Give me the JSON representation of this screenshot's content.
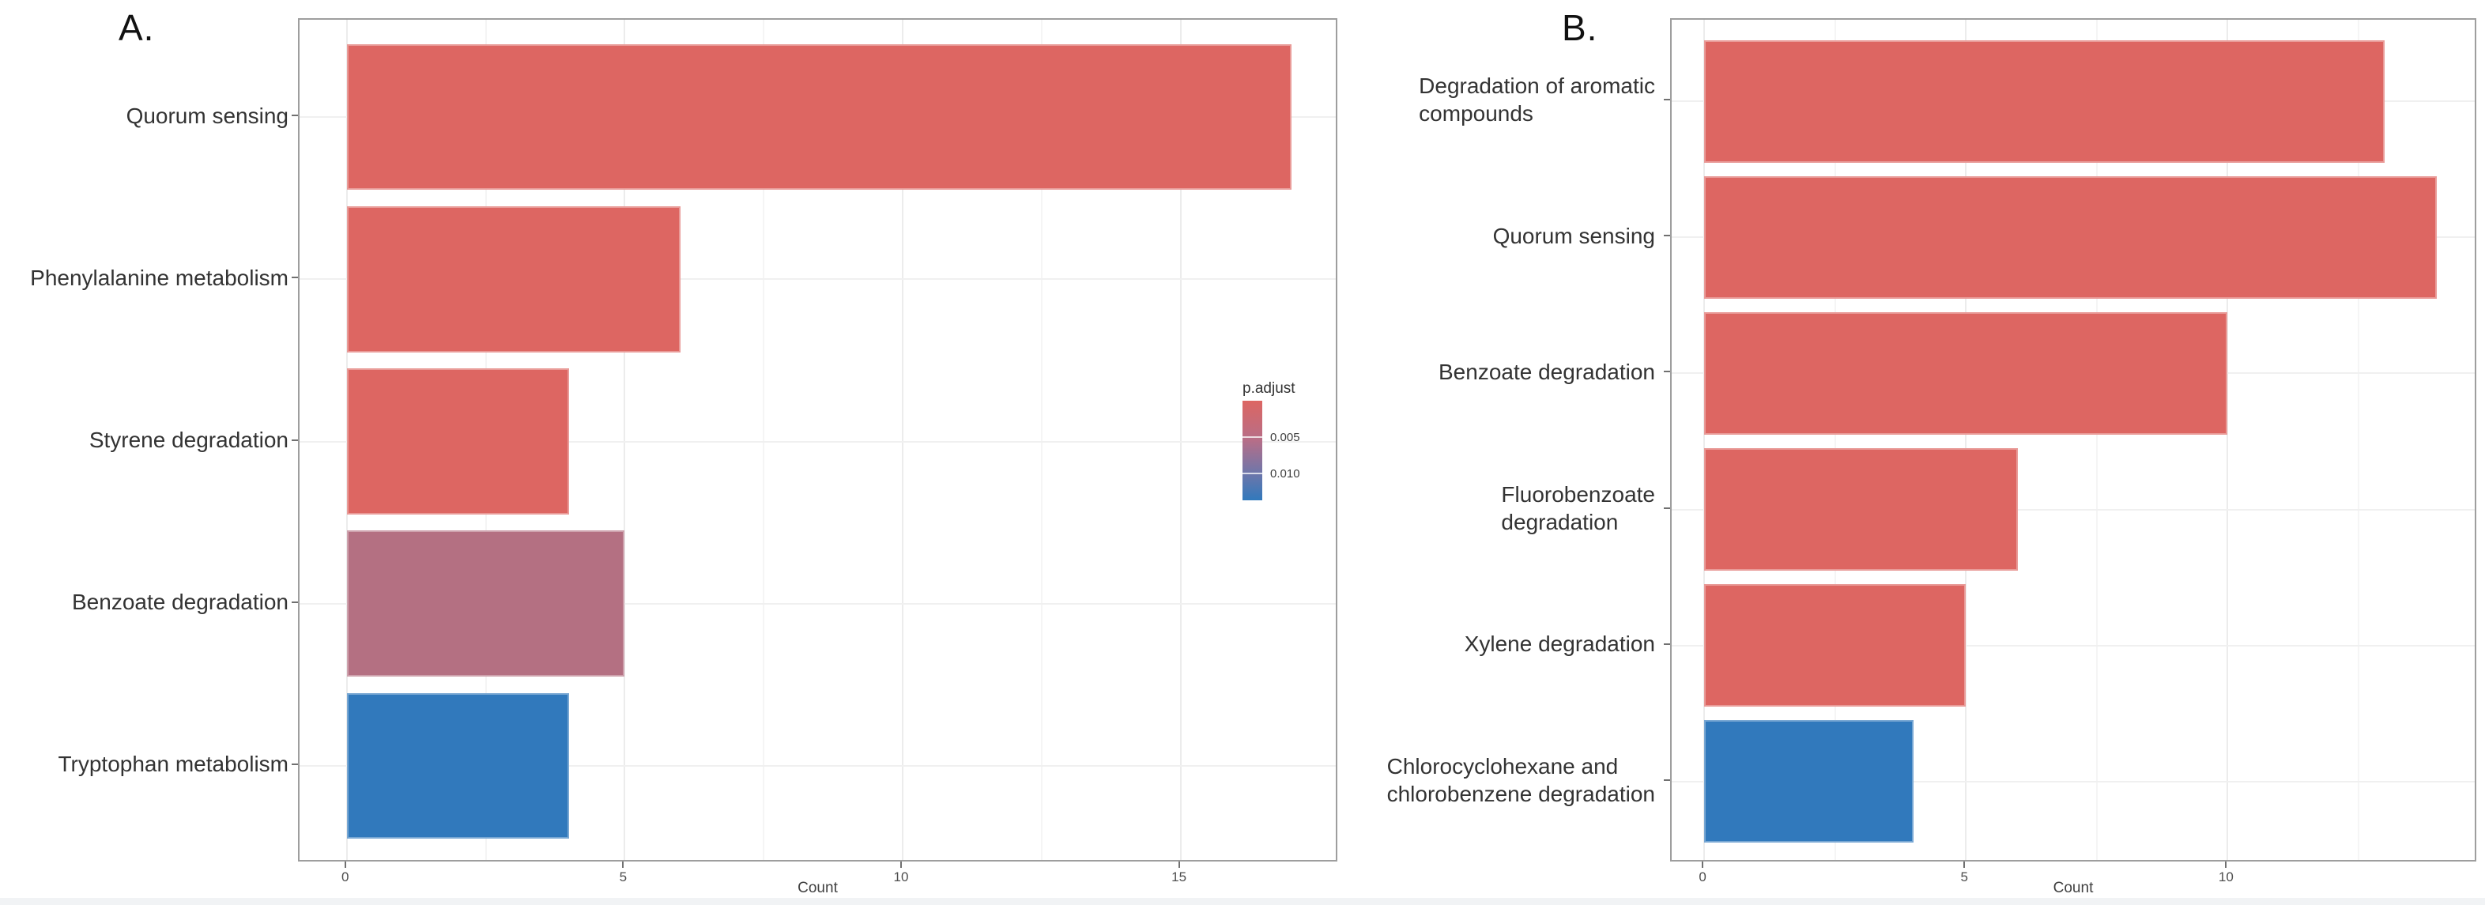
{
  "figure_type": "two-panel horizontal bar chart, pathway enrichment",
  "colors": {
    "bar_red": "#DD6662",
    "bar_mauve": "#B47082",
    "bar_blue": "#3179BC",
    "panel_border": "#9e9e9e",
    "grid_major": "#ececec",
    "grid_minor": "#f5f5f5",
    "bottom_strip": "#f1f3f5"
  },
  "chart_data": [
    {
      "type": "bar",
      "orientation": "horizontal",
      "panel_label": "A.",
      "title": "",
      "categories": [
        "Quorum sensing",
        "Phenylalanine metabolism",
        "Styrene degradation",
        "Benzoate degradation",
        "Tryptophan metabolism"
      ],
      "category_label_lines": [
        [
          "Quorum sensing"
        ],
        [
          "Phenylalanine metabolism"
        ],
        [
          "Styrene degradation"
        ],
        [
          "Benzoate degradation"
        ],
        [
          "Tryptophan metabolism"
        ]
      ],
      "values": [
        17,
        6,
        4,
        5,
        4
      ],
      "bar_colors": [
        "#DD6662",
        "#DD6662",
        "#DD6662",
        "#B47082",
        "#3179BC"
      ],
      "xlabel": "Count",
      "x_major_ticks": [
        0,
        5,
        10,
        15
      ],
      "x_minor_ticks": [
        2.5,
        7.5,
        12.5
      ],
      "xlim": [
        -0.85,
        17.85
      ],
      "grid": "on",
      "bar_width_fraction": 0.9,
      "legend": {
        "title": "p.adjust",
        "position": "inside-right",
        "tick_labels": [
          "0.005",
          "0.010"
        ],
        "gradient_top_color": "#DD6662",
        "gradient_bottom_color": "#3179BC"
      }
    },
    {
      "type": "bar",
      "orientation": "horizontal",
      "panel_label": "B.",
      "title": "",
      "categories": [
        "Degradation of aromatic compounds",
        "Quorum sensing",
        "Benzoate degradation",
        "Fluorobenzoate degradation",
        "Xylene degradation",
        "Chlorocyclohexane and chlorobenzene degradation"
      ],
      "category_label_lines": [
        [
          "Degradation of aromatic",
          "compounds"
        ],
        [
          "Quorum sensing"
        ],
        [
          "Benzoate degradation"
        ],
        [
          "Fluorobenzoate",
          "degradation"
        ],
        [
          "Xylene degradation"
        ],
        [
          "Chlorocyclohexane and",
          "chlorobenzene degradation"
        ]
      ],
      "values": [
        13,
        14,
        10,
        6,
        5,
        4
      ],
      "bar_colors": [
        "#DD6662",
        "#DD6662",
        "#DD6662",
        "#DD6662",
        "#DD6662",
        "#3179BC"
      ],
      "xlabel": "Count",
      "x_major_ticks": [
        0,
        5,
        10
      ],
      "x_minor_ticks": [
        2.5,
        7.5,
        12.5
      ],
      "xlim": [
        -0.62,
        14.78
      ],
      "grid": "on",
      "bar_width_fraction": 0.9,
      "legend": null
    }
  ]
}
